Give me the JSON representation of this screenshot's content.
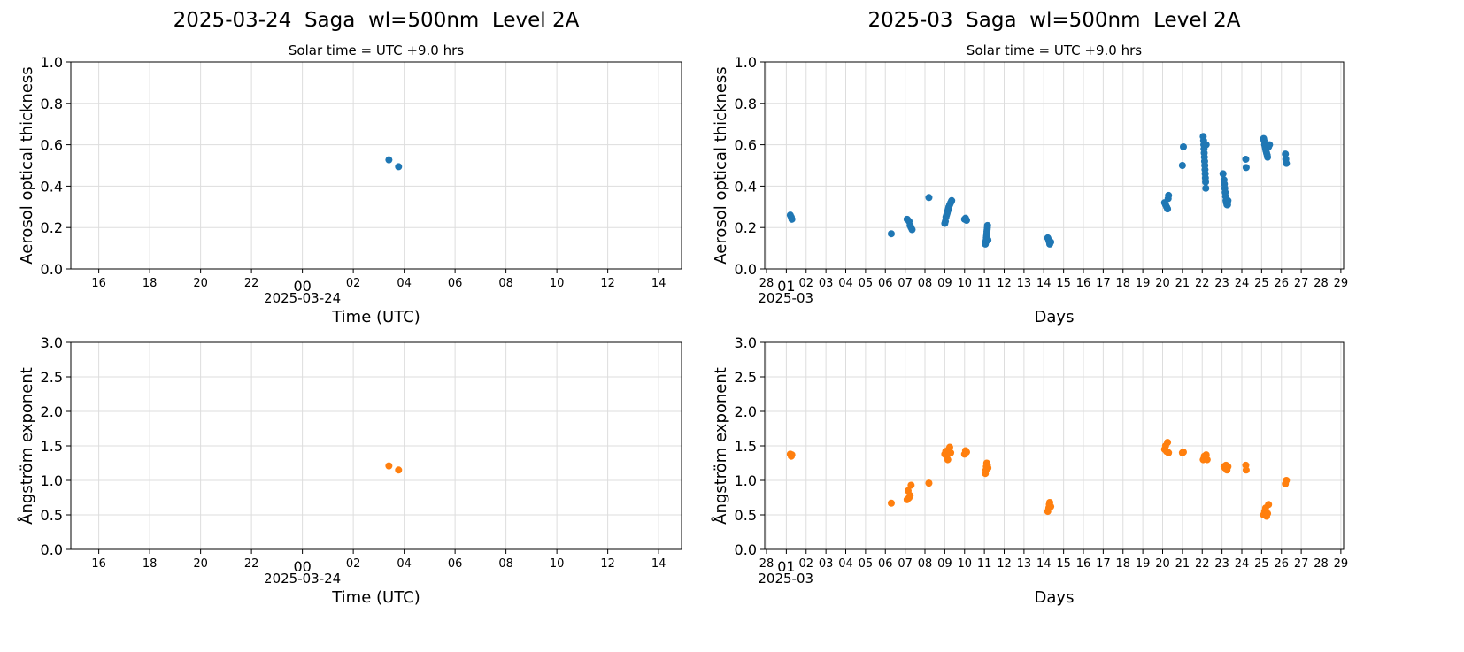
{
  "chart_data": [
    {
      "type": "scatter",
      "title": "2025-03-24  Saga  wl=500nm  Level 2A",
      "subtitle": "Solar time = UTC +9.0 hrs",
      "xlabel": "Time (UTC)",
      "ylabel": "Aerosol optical thickness",
      "ylim": [
        0,
        1.0
      ],
      "yticks": [
        "0.0",
        "0.2",
        "0.4",
        "0.6",
        "0.8",
        "1.0"
      ],
      "xticks": [
        "16",
        "18",
        "20",
        "22",
        "00",
        "02",
        "04",
        "06",
        "08",
        "10",
        "12",
        "14"
      ],
      "xtick_sub": "2025-03-24",
      "xlim_hours": [
        -9.1,
        14.9
      ],
      "grid": true,
      "color": "#1f77b4",
      "x_hours": [
        3.4,
        3.78
      ],
      "y": [
        0.527,
        0.494
      ]
    },
    {
      "type": "scatter",
      "title": "2025-03  Saga  wl=500nm  Level 2A",
      "subtitle": "Solar time = UTC +9.0 hrs",
      "xlabel": "Days",
      "ylabel": "Aerosol optical thickness",
      "ylim": [
        0,
        1.0
      ],
      "yticks": [
        "0.0",
        "0.2",
        "0.4",
        "0.6",
        "0.8",
        "1.0"
      ],
      "xticks": [
        "28",
        "01",
        "02",
        "03",
        "04",
        "05",
        "06",
        "07",
        "08",
        "09",
        "10",
        "11",
        "12",
        "13",
        "14",
        "15",
        "16",
        "17",
        "18",
        "19",
        "20",
        "21",
        "22",
        "23",
        "24",
        "25",
        "26",
        "27",
        "28",
        "29"
      ],
      "xtick_sub": "2025-03",
      "xlim_days": [
        -1.09,
        28.14
      ],
      "grid": true,
      "color": "#1f77b4",
      "x_day": [
        0.2,
        0.25,
        0.28,
        5.3,
        6.1,
        6.2,
        6.25,
        6.3,
        6.35,
        7.2,
        8.0,
        8.03,
        8.06,
        8.09,
        8.12,
        8.15,
        8.18,
        8.21,
        8.25,
        8.3,
        8.35,
        9.0,
        9.05,
        9.1,
        10.05,
        10.07,
        10.09,
        10.1,
        10.11,
        10.12,
        10.13,
        10.14,
        10.15,
        10.16,
        10.18,
        13.2,
        13.25,
        13.28,
        13.3,
        13.35,
        19.1,
        19.15,
        19.2,
        19.25,
        19.28,
        19.3,
        20.0,
        20.05,
        21.05,
        21.07,
        21.08,
        21.09,
        21.1,
        21.11,
        21.12,
        21.13,
        21.14,
        21.15,
        21.16,
        21.17,
        21.18,
        21.2,
        22.05,
        22.1,
        22.12,
        22.14,
        22.16,
        22.18,
        22.2,
        22.22,
        22.25,
        22.28,
        22.3,
        23.2,
        23.22,
        24.1,
        24.12,
        24.15,
        24.18,
        24.2,
        24.22,
        24.25,
        24.28,
        24.3,
        24.35,
        24.4,
        25.2,
        25.22,
        25.25
      ],
      "y": [
        0.26,
        0.25,
        0.24,
        0.17,
        0.24,
        0.23,
        0.21,
        0.2,
        0.19,
        0.345,
        0.22,
        0.23,
        0.25,
        0.26,
        0.27,
        0.28,
        0.29,
        0.3,
        0.31,
        0.32,
        0.33,
        0.24,
        0.245,
        0.235,
        0.12,
        0.13,
        0.14,
        0.15,
        0.16,
        0.17,
        0.18,
        0.19,
        0.2,
        0.21,
        0.14,
        0.15,
        0.14,
        0.13,
        0.12,
        0.13,
        0.32,
        0.31,
        0.3,
        0.29,
        0.34,
        0.355,
        0.5,
        0.59,
        0.64,
        0.62,
        0.6,
        0.58,
        0.56,
        0.54,
        0.52,
        0.5,
        0.48,
        0.46,
        0.44,
        0.42,
        0.39,
        0.6,
        0.46,
        0.43,
        0.41,
        0.39,
        0.37,
        0.35,
        0.33,
        0.32,
        0.31,
        0.31,
        0.33,
        0.53,
        0.49,
        0.63,
        0.62,
        0.6,
        0.59,
        0.58,
        0.57,
        0.56,
        0.55,
        0.54,
        0.59,
        0.6,
        0.555,
        0.53,
        0.51
      ],
      "x_day_pre": []
    },
    {
      "type": "scatter",
      "title": "",
      "subtitle": "",
      "xlabel": "Time (UTC)",
      "ylabel": "Ångström exponent",
      "ylim": [
        0,
        3.0
      ],
      "yticks": [
        "0.0",
        "0.5",
        "1.0",
        "1.5",
        "2.0",
        "2.5",
        "3.0"
      ],
      "xticks": [
        "16",
        "18",
        "20",
        "22",
        "00",
        "02",
        "04",
        "06",
        "08",
        "10",
        "12",
        "14"
      ],
      "xtick_sub": "2025-03-24",
      "xlim_hours": [
        -9.1,
        14.9
      ],
      "grid": true,
      "color": "#ff7f0e",
      "x_hours": [
        3.4,
        3.78
      ],
      "y": [
        1.21,
        1.15
      ]
    },
    {
      "type": "scatter",
      "title": "",
      "subtitle": "",
      "xlabel": "Days",
      "ylabel": "Ångström exponent",
      "ylim": [
        0,
        3.0
      ],
      "yticks": [
        "0.0",
        "0.5",
        "1.0",
        "1.5",
        "2.0",
        "2.5",
        "3.0"
      ],
      "xticks": [
        "28",
        "01",
        "02",
        "03",
        "04",
        "05",
        "06",
        "07",
        "08",
        "09",
        "10",
        "11",
        "12",
        "13",
        "14",
        "15",
        "16",
        "17",
        "18",
        "19",
        "20",
        "21",
        "22",
        "23",
        "24",
        "25",
        "26",
        "27",
        "28",
        "29"
      ],
      "xtick_sub": "2025-03",
      "xlim_days": [
        -1.09,
        28.14
      ],
      "grid": true,
      "color": "#ff7f0e",
      "x_day": [
        0.2,
        0.25,
        0.28,
        5.3,
        6.1,
        6.15,
        6.2,
        6.25,
        6.3,
        7.2,
        8.0,
        8.05,
        8.1,
        8.15,
        8.2,
        8.25,
        8.3,
        9.0,
        9.05,
        9.1,
        10.05,
        10.08,
        10.1,
        10.12,
        10.15,
        10.18,
        13.2,
        13.25,
        13.28,
        13.3,
        13.35,
        19.1,
        19.15,
        19.2,
        19.25,
        19.3,
        20.0,
        20.05,
        21.05,
        21.1,
        21.15,
        21.2,
        21.25,
        22.1,
        22.15,
        22.2,
        22.25,
        22.3,
        23.2,
        23.22,
        24.1,
        24.15,
        24.2,
        24.25,
        24.3,
        24.35,
        25.2,
        25.25
      ],
      "y": [
        1.38,
        1.35,
        1.37,
        0.67,
        0.72,
        0.85,
        0.75,
        0.78,
        0.93,
        0.96,
        1.38,
        1.42,
        1.35,
        1.3,
        1.45,
        1.48,
        1.4,
        1.38,
        1.43,
        1.41,
        1.1,
        1.15,
        1.2,
        1.25,
        1.22,
        1.18,
        0.55,
        0.6,
        0.65,
        0.68,
        0.62,
        1.45,
        1.5,
        1.42,
        1.55,
        1.4,
        1.4,
        1.41,
        1.3,
        1.35,
        1.33,
        1.37,
        1.3,
        1.2,
        1.18,
        1.22,
        1.15,
        1.2,
        1.22,
        1.15,
        0.5,
        0.55,
        0.6,
        0.48,
        0.52,
        0.65,
        0.95,
        1.0
      ]
    }
  ]
}
